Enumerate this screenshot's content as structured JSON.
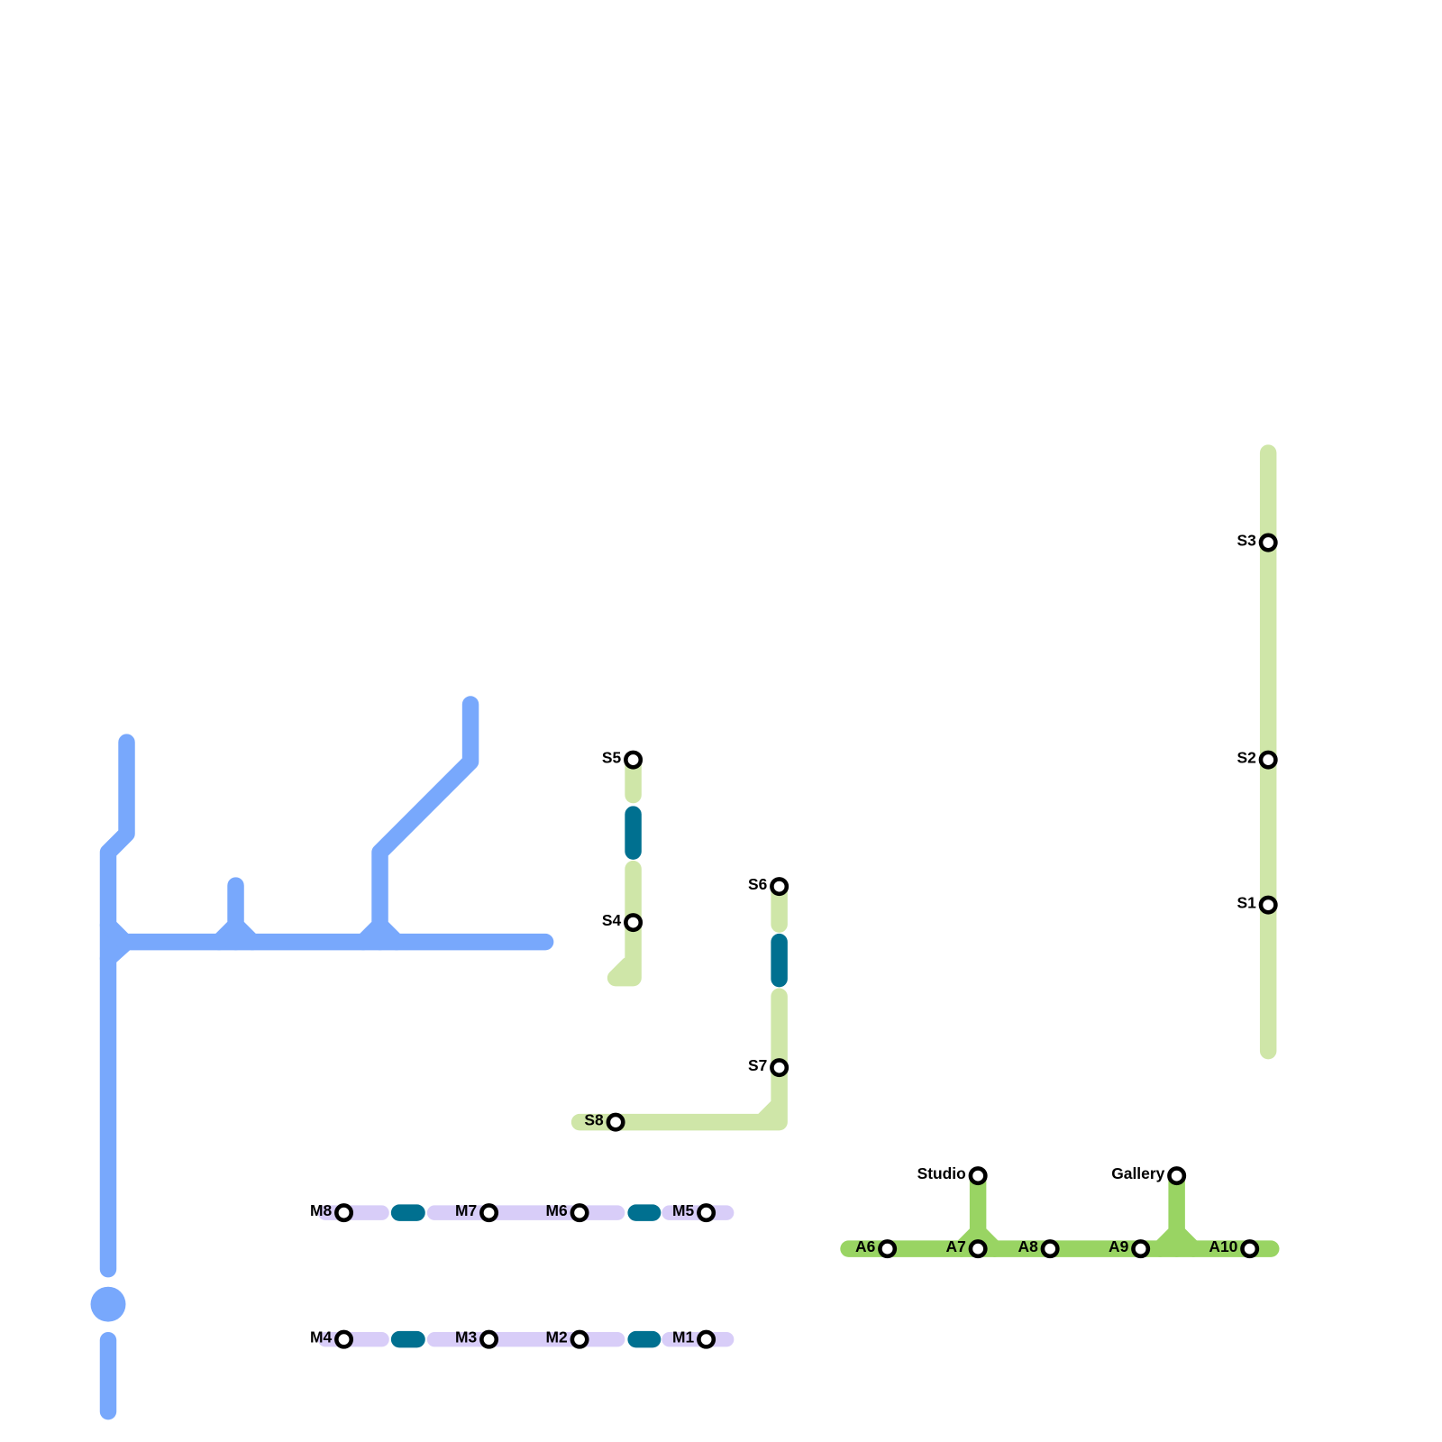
{
  "stations": [
    "S1",
    "S2",
    "S3",
    "S4",
    "S5",
    "S6",
    "S7",
    "S8",
    "M1",
    "M2",
    "M3",
    "M4",
    "M5",
    "M6",
    "M7",
    "M8",
    "A6",
    "A7",
    "A8",
    "A9",
    "A10",
    "Studio",
    "Gallery"
  ]
}
